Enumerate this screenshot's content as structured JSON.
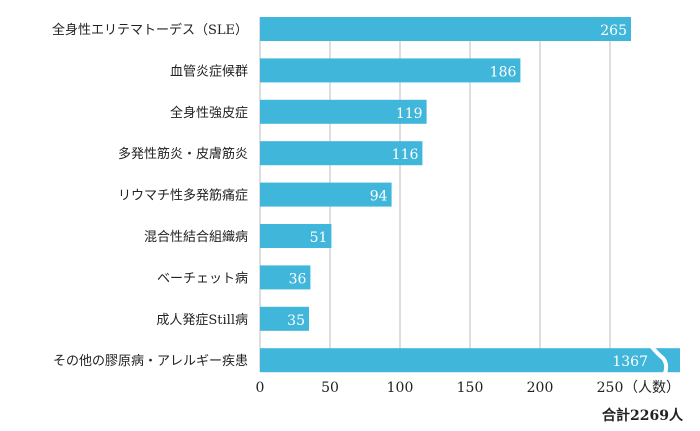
{
  "chart_data": {
    "type": "bar",
    "orientation": "horizontal",
    "categories": [
      "全身性エリテマトーデス（SLE）",
      "血管炎症候群",
      "全身性強皮症",
      "多発性筋炎・皮膚筋炎",
      "リウマチ性多発筋痛症",
      "混合性結合組織病",
      "ベーチェット病",
      "成人発症Still病",
      "その他の膠原病・アレルギー疾患"
    ],
    "values": [
      265,
      186,
      119,
      116,
      94,
      51,
      36,
      35,
      1367
    ],
    "value_labels": [
      "265",
      "186",
      "119",
      "116",
      "94",
      "51",
      "36",
      "35",
      "1367"
    ],
    "broken_axis_bar_index": 8,
    "xlim": [
      0,
      250
    ],
    "x_ticks": [
      "0",
      "50",
      "100",
      "150",
      "200",
      "250"
    ],
    "x_tick_values": [
      0,
      50,
      100,
      150,
      200,
      250
    ],
    "xlabel": "（人数）",
    "total_label": "合計2269人",
    "grid": true,
    "bar_color": "#41b6db",
    "grid_color": "#c8c8c8"
  }
}
